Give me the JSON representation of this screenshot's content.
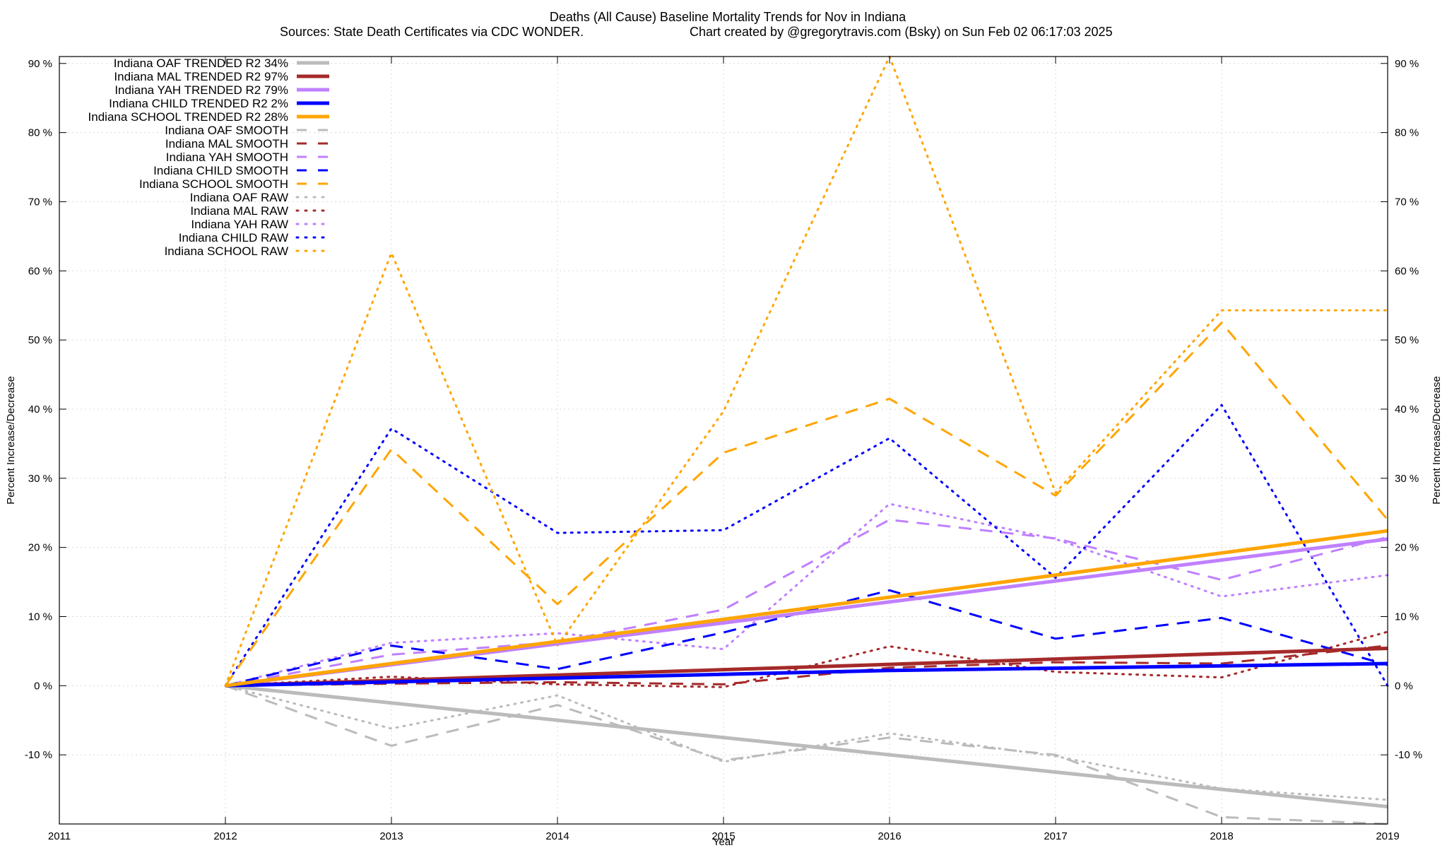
{
  "title": "Deaths (All Cause)  Baseline Mortality Trends for Nov in Indiana",
  "subtitle_left": "Sources: State Death Certificates via CDC WONDER.",
  "subtitle_right": "Chart created by @gregorytravis.com (Bsky) on Sun Feb 02 06:17:03 2025",
  "chart_data": {
    "type": "line",
    "xlabel": "Year",
    "ylabel": "Percent Increase/Decrease",
    "y2label": "Percent Increase/Decrease",
    "xlim": [
      2011,
      2019
    ],
    "ylim": [
      -20,
      91
    ],
    "x_ticks": [
      "2011",
      "2012",
      "2013",
      "2014",
      "2015",
      "2016",
      "2017",
      "2018",
      "2019"
    ],
    "y_ticks": [
      {
        "v": 90,
        "label": "90 %"
      },
      {
        "v": 80,
        "label": "80 %"
      },
      {
        "v": 70,
        "label": "70 %"
      },
      {
        "v": 60,
        "label": "60 %"
      },
      {
        "v": 50,
        "label": "50 %"
      },
      {
        "v": 40,
        "label": "40 %"
      },
      {
        "v": 30,
        "label": "30 %"
      },
      {
        "v": 20,
        "label": "20 %"
      },
      {
        "v": 10,
        "label": "10 %"
      },
      {
        "v": 0,
        "label": "0 %"
      },
      {
        "v": -10,
        "label": "-10 %"
      }
    ],
    "grid": true,
    "legend_position": "top-left",
    "series": [
      {
        "name": "Indiana OAF TRENDED R2  34%",
        "color": "#bbbbbb",
        "style": "solid",
        "width": 5,
        "x": [
          2012,
          2019
        ],
        "y": [
          0,
          -17.5
        ]
      },
      {
        "name": "Indiana MAL TRENDED R2  97%",
        "color": "#a52a2a",
        "style": "solid",
        "width": 5,
        "x": [
          2012,
          2019
        ],
        "y": [
          0,
          5.4
        ]
      },
      {
        "name": "Indiana YAH TRENDED R2  79%",
        "color": "#c080ff",
        "style": "solid",
        "width": 5,
        "x": [
          2012,
          2019
        ],
        "y": [
          0,
          21.2
        ]
      },
      {
        "name": "Indiana CHILD TRENDED R2   2%",
        "color": "#0000ff",
        "style": "solid",
        "width": 5,
        "x": [
          2012,
          2016,
          2019
        ],
        "y": [
          0,
          2.2,
          3.2
        ]
      },
      {
        "name": "Indiana SCHOOL TRENDED R2  28%",
        "color": "#ffa500",
        "style": "solid",
        "width": 5,
        "x": [
          2012,
          2019
        ],
        "y": [
          0,
          22.4
        ]
      },
      {
        "name": "Indiana OAF SMOOTH",
        "color": "#bbbbbb",
        "style": "dash",
        "width": 3,
        "x": [
          2012,
          2013,
          2014,
          2015,
          2016,
          2017,
          2018,
          2019
        ],
        "y": [
          0,
          -8.7,
          -2.8,
          -10.8,
          -7.5,
          -10.0,
          -19.0,
          -20.0
        ]
      },
      {
        "name": "Indiana MAL SMOOTH",
        "color": "#a52a2a",
        "style": "dash",
        "width": 3,
        "x": [
          2012,
          2013,
          2014,
          2015,
          2016,
          2017,
          2018,
          2019
        ],
        "y": [
          0,
          0.3,
          0.5,
          0.2,
          2.6,
          3.4,
          3.2,
          5.8
        ]
      },
      {
        "name": "Indiana YAH SMOOTH",
        "color": "#c080ff",
        "style": "dash",
        "width": 3,
        "x": [
          2012,
          2013,
          2014,
          2015,
          2016,
          2017,
          2018,
          2019
        ],
        "y": [
          0,
          4.5,
          6.3,
          11.0,
          24.0,
          21.3,
          15.3,
          21.5
        ]
      },
      {
        "name": "Indiana CHILD SMOOTH",
        "color": "#0000ff",
        "style": "dash",
        "width": 3,
        "x": [
          2012,
          2013,
          2014,
          2015,
          2016,
          2017,
          2018,
          2019
        ],
        "y": [
          0,
          5.8,
          2.4,
          7.7,
          13.8,
          6.8,
          9.8,
          3.0
        ]
      },
      {
        "name": "Indiana SCHOOL SMOOTH",
        "color": "#ffa500",
        "style": "dash",
        "width": 3,
        "x": [
          2012,
          2013,
          2014,
          2015,
          2016,
          2017,
          2018,
          2019
        ],
        "y": [
          0,
          34.2,
          11.8,
          33.7,
          41.5,
          27.5,
          52.5,
          24.0
        ]
      },
      {
        "name": "Indiana OAF RAW",
        "color": "#bbbbbb",
        "style": "dot",
        "width": 3,
        "x": [
          2012,
          2013,
          2014,
          2015,
          2016,
          2017,
          2018,
          2019
        ],
        "y": [
          0,
          -6.2,
          -1.4,
          -11.0,
          -6.9,
          -10.2,
          -14.9,
          -16.5
        ]
      },
      {
        "name": "Indiana MAL RAW",
        "color": "#a52a2a",
        "style": "dot",
        "width": 3,
        "x": [
          2012,
          2013,
          2014,
          2015,
          2016,
          2017,
          2018,
          2019
        ],
        "y": [
          0,
          1.3,
          0.2,
          -0.2,
          5.7,
          2.0,
          1.2,
          7.8
        ]
      },
      {
        "name": "Indiana YAH RAW",
        "color": "#c080ff",
        "style": "dot",
        "width": 3,
        "x": [
          2012,
          2013,
          2014,
          2015,
          2016,
          2017,
          2018,
          2019
        ],
        "y": [
          0,
          6.2,
          7.6,
          5.3,
          26.3,
          21.2,
          12.9,
          16.0
        ]
      },
      {
        "name": "Indiana CHILD RAW",
        "color": "#0000ff",
        "style": "dot",
        "width": 3,
        "x": [
          2012,
          2013,
          2014,
          2015,
          2016,
          2017,
          2018,
          2019
        ],
        "y": [
          0,
          37.2,
          22.1,
          22.5,
          35.8,
          15.6,
          40.6,
          0.0
        ]
      },
      {
        "name": "Indiana SCHOOL RAW",
        "color": "#ffa500",
        "style": "dot",
        "width": 3,
        "x": [
          2012,
          2013,
          2014,
          2015,
          2016,
          2017,
          2018,
          2019
        ],
        "y": [
          0,
          62.6,
          5.8,
          39.7,
          91.0,
          27.9,
          54.3,
          54.3
        ]
      }
    ]
  }
}
